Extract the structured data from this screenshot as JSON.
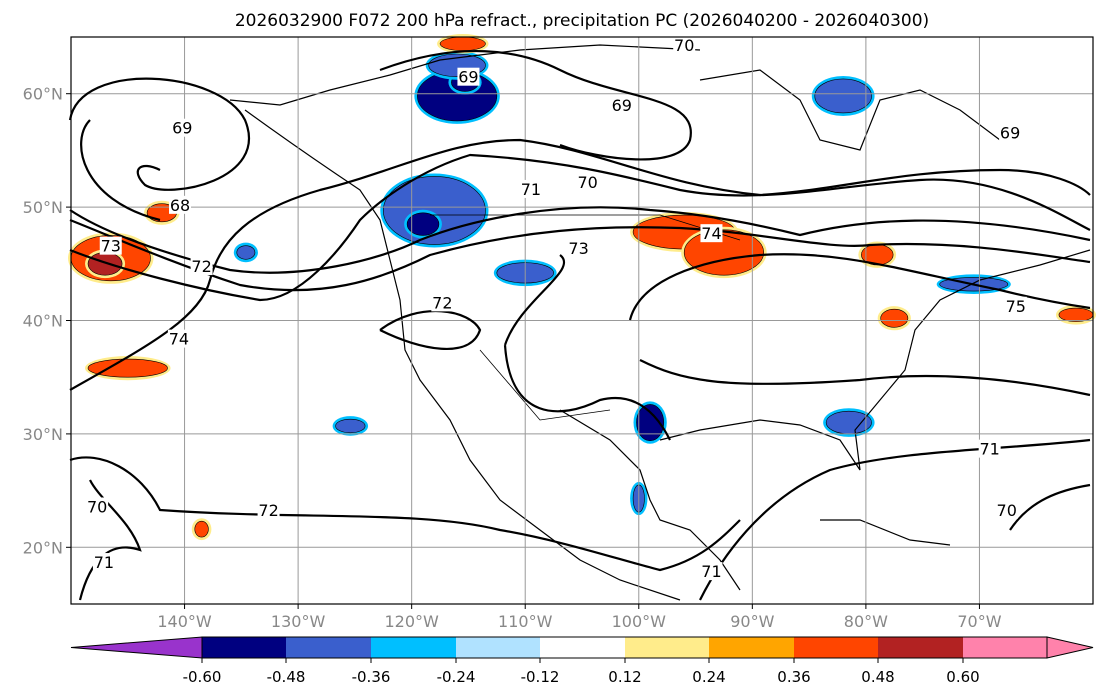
{
  "chart_data": {
    "type": "map-contour",
    "title": "2026032900 F072 200 hPa refract., precipitation PC (2026040200 - 2026040300)",
    "lon_range": [
      -150,
      -60
    ],
    "lat_range": [
      15,
      65
    ],
    "lat_ticks": [
      {
        "value": 60,
        "label": "60°N"
      },
      {
        "value": 50,
        "label": "50°N"
      },
      {
        "value": 40,
        "label": "40°N"
      },
      {
        "value": 30,
        "label": "30°N"
      },
      {
        "value": 20,
        "label": "20°N"
      }
    ],
    "lon_ticks": [
      {
        "value": -140,
        "label": "140°W"
      },
      {
        "value": -130,
        "label": "130°W"
      },
      {
        "value": -120,
        "label": "120°W"
      },
      {
        "value": -110,
        "label": "110°W"
      },
      {
        "value": -100,
        "label": "100°W"
      },
      {
        "value": -90,
        "label": "90°W"
      },
      {
        "value": -80,
        "label": "80°W"
      },
      {
        "value": -70,
        "label": "70°W"
      }
    ],
    "grid": true,
    "contour_labels": [
      {
        "value": "70",
        "lon": -96,
        "lat": 64.3
      },
      {
        "value": "69",
        "lon": -115,
        "lat": 61.5
      },
      {
        "value": "69",
        "lon": -101.5,
        "lat": 59
      },
      {
        "value": "69",
        "lon": -140.2,
        "lat": 57
      },
      {
        "value": "68",
        "lon": -140.4,
        "lat": 50.2
      },
      {
        "value": "71",
        "lon": -109.5,
        "lat": 51.6
      },
      {
        "value": "70",
        "lon": -104.5,
        "lat": 52.2
      },
      {
        "value": "73",
        "lon": -146.5,
        "lat": 46.6
      },
      {
        "value": "72",
        "lon": -138.5,
        "lat": 44.8
      },
      {
        "value": "74",
        "lon": -93.6,
        "lat": 47.7
      },
      {
        "value": "73",
        "lon": -105.3,
        "lat": 46.4
      },
      {
        "value": "75",
        "lon": -66.8,
        "lat": 41.3
      },
      {
        "value": "72",
        "lon": -117.3,
        "lat": 41.6
      },
      {
        "value": "74",
        "lon": -140.5,
        "lat": 38.4
      },
      {
        "value": "72",
        "lon": -132.6,
        "lat": 23.3
      },
      {
        "value": "71",
        "lon": -69.1,
        "lat": 28.7
      },
      {
        "value": "70",
        "lon": -67.6,
        "lat": 23.3
      },
      {
        "value": "70",
        "lon": -147.7,
        "lat": 23.6
      },
      {
        "value": "71",
        "lon": -147.1,
        "lat": 18.7
      },
      {
        "value": "71",
        "lon": -93.6,
        "lat": 17.9
      },
      {
        "value": "69",
        "lon": -67.3,
        "lat": 56.6
      }
    ],
    "colorbar": {
      "boundaries": [
        "-0.60",
        "-0.48",
        "-0.36",
        "-0.24",
        "-0.12",
        "0.12",
        "0.24",
        "0.36",
        "0.48",
        "0.60"
      ],
      "colors": [
        "#9933cc",
        "#000080",
        "#3a5fcd",
        "#00bfff",
        "#b0e2ff",
        "#ffffff",
        "#ffec8b",
        "#ffa500",
        "#ff4500",
        "#b22222",
        "#ff82ab"
      ]
    },
    "precip_areas": [
      {
        "lon": -116,
        "lat": 59.8,
        "rlon": 3.5,
        "rlat": 2.2,
        "level": -0.48
      },
      {
        "lon": -115.3,
        "lat": 61,
        "rlon": 1.2,
        "rlat": 0.8,
        "level": -0.6
      },
      {
        "lon": -118,
        "lat": 49.7,
        "rlon": 4.5,
        "rlat": 3,
        "level": -0.36
      },
      {
        "lon": -119,
        "lat": 48.5,
        "rlon": 1.4,
        "rlat": 1,
        "level": -0.6
      },
      {
        "lon": -116,
        "lat": 62.5,
        "rlon": 2.5,
        "rlat": 1,
        "level": -0.36
      },
      {
        "lon": -115.5,
        "lat": 64.4,
        "rlon": 2,
        "rlat": 0.6,
        "level": 0.36
      },
      {
        "lon": -82,
        "lat": 59.8,
        "rlon": 2.5,
        "rlat": 1.5,
        "level": -0.36
      },
      {
        "lon": -96,
        "lat": 47.8,
        "rlon": 4.5,
        "rlat": 1.5,
        "level": 0.36
      },
      {
        "lon": -92.5,
        "lat": 46,
        "rlon": 3.5,
        "rlat": 2,
        "level": 0.36
      },
      {
        "lon": -146.5,
        "lat": 45.5,
        "rlon": 3.5,
        "rlat": 2,
        "level": 0.36
      },
      {
        "lon": -147,
        "lat": 45,
        "rlon": 1.5,
        "rlat": 1,
        "level": 0.48
      },
      {
        "lon": -145,
        "lat": 35.8,
        "rlon": 3.5,
        "rlat": 0.8,
        "level": 0.36
      },
      {
        "lon": -110,
        "lat": 44.2,
        "rlon": 2.5,
        "rlat": 0.9,
        "level": -0.36
      },
      {
        "lon": -99,
        "lat": 31,
        "rlon": 1.2,
        "rlat": 1.6,
        "level": -0.48
      },
      {
        "lon": -125.4,
        "lat": 30.7,
        "rlon": 1.3,
        "rlat": 0.6,
        "level": -0.36
      },
      {
        "lon": -81.5,
        "lat": 31,
        "rlon": 2,
        "rlat": 1,
        "level": -0.36
      },
      {
        "lon": -70.5,
        "lat": 43.2,
        "rlon": 3,
        "rlat": 0.6,
        "level": -0.36
      },
      {
        "lon": -79,
        "lat": 45.8,
        "rlon": 1.4,
        "rlat": 0.9,
        "level": 0.36
      },
      {
        "lon": -77.5,
        "lat": 40.2,
        "rlon": 1.2,
        "rlat": 0.8,
        "level": 0.36
      },
      {
        "lon": -61.5,
        "lat": 40.5,
        "rlon": 1.5,
        "rlat": 0.6,
        "level": 0.36
      },
      {
        "lon": -100,
        "lat": 24.3,
        "rlon": 0.5,
        "rlat": 1.2,
        "level": -0.36
      },
      {
        "lon": -138.5,
        "lat": 21.6,
        "rlon": 0.6,
        "rlat": 0.7,
        "level": 0.36
      },
      {
        "lon": -134.6,
        "lat": 46,
        "rlon": 0.8,
        "rlat": 0.6,
        "level": -0.36
      },
      {
        "lon": -142,
        "lat": 49.5,
        "rlon": 1.3,
        "rlat": 0.8,
        "level": 0.36
      }
    ]
  }
}
